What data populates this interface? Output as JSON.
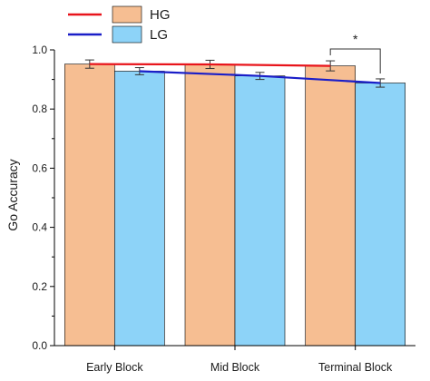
{
  "chart_data": {
    "type": "bar",
    "categories": [
      "Early Block",
      "Mid Block",
      "Terminal Block"
    ],
    "series": [
      {
        "name": "HG",
        "values": [
          0.952,
          0.951,
          0.946
        ],
        "errors": [
          0.014,
          0.014,
          0.017
        ],
        "bar_color": "#F6BE92",
        "line_color": "#E8141B"
      },
      {
        "name": "LG",
        "values": [
          0.928,
          0.912,
          0.888
        ],
        "errors": [
          0.012,
          0.012,
          0.014
        ],
        "bar_color": "#8DD3F8",
        "line_color": "#1A1EC8"
      }
    ],
    "ylabel": "Go Accuracy",
    "xlabel": "",
    "ylim": [
      0.0,
      1.0
    ],
    "yticks": [
      "0.0",
      "0.2",
      "0.4",
      "0.6",
      "0.8",
      "1.0"
    ],
    "grid": false,
    "legend": "top-left",
    "significance": [
      {
        "category": "Terminal Block",
        "label": "*"
      }
    ]
  }
}
